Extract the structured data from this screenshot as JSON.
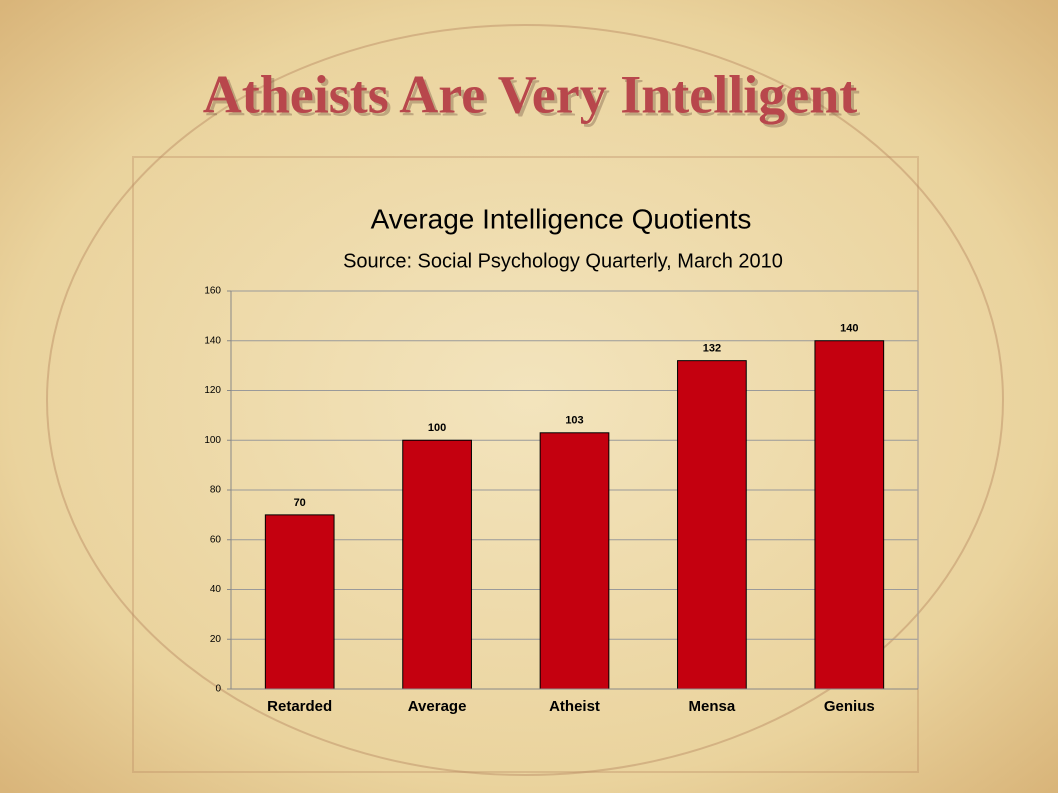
{
  "slide_title": "Atheists Are Very Intelligent",
  "chart_data": {
    "type": "bar",
    "title": "Average Intelligence Quotients",
    "subtitle": "Source: Social Psychology Quarterly, March 2010",
    "categories": [
      "Retarded",
      "Average",
      "Atheist",
      "Mensa",
      "Genius"
    ],
    "values": [
      70,
      100,
      103,
      132,
      140
    ],
    "color": "#c4000f",
    "ylim": [
      0,
      160
    ],
    "yticks": [
      0,
      20,
      40,
      60,
      80,
      100,
      120,
      140,
      160
    ],
    "grid": true
  }
}
